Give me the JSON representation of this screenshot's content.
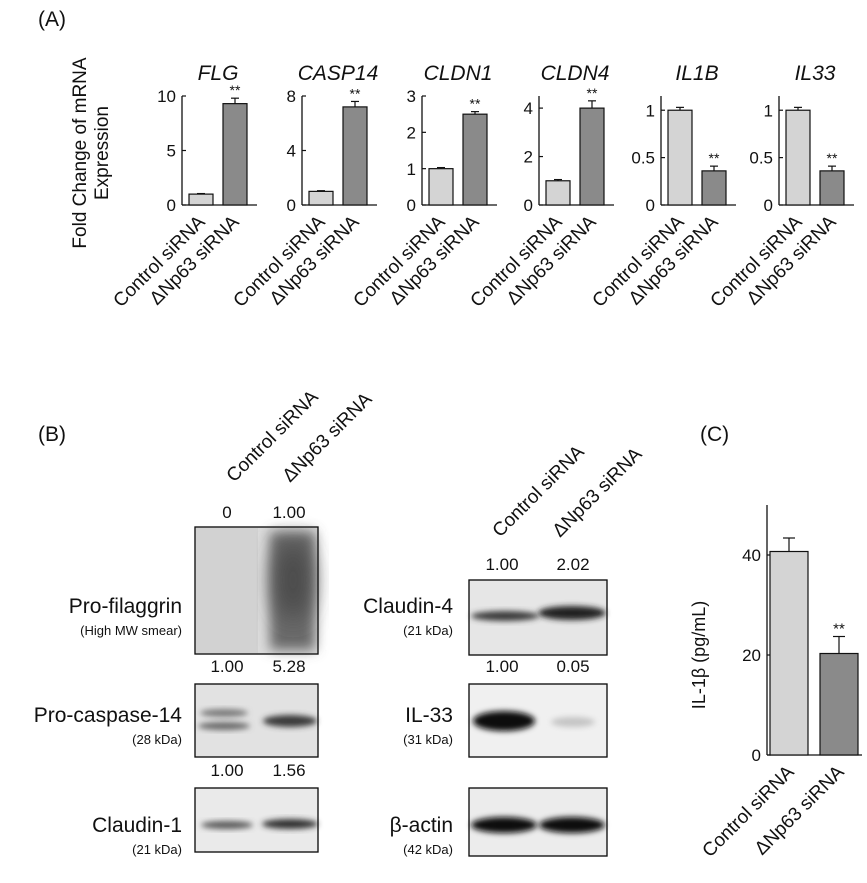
{
  "panel_labels": [
    "(A)",
    "(B)",
    "(C)"
  ],
  "colors": {
    "control": "#d4d4d4",
    "knockdown": "#8a8a8a",
    "axis": "#111111"
  },
  "chart_data": [
    {
      "type": "bar",
      "panel": "(A)",
      "ylabel": [
        "Fold Change of mRNA",
        "Expression"
      ],
      "categories": [
        "Control siRNA",
        "ΔNp63 siRNA"
      ],
      "subplots": [
        {
          "title": "FLG",
          "values": [
            1.0,
            9.3
          ],
          "errors": [
            0.05,
            0.5
          ],
          "ylim": [
            0,
            10
          ],
          "yticks": [
            0,
            5,
            10
          ],
          "significance": [
            "",
            "**"
          ]
        },
        {
          "title": "CASP14",
          "values": [
            1.0,
            7.2
          ],
          "errors": [
            0.05,
            0.4
          ],
          "ylim": [
            0,
            8
          ],
          "yticks": [
            0,
            4,
            8
          ],
          "significance": [
            "",
            "**"
          ]
        },
        {
          "title": "CLDN1",
          "values": [
            1.0,
            2.5
          ],
          "errors": [
            0.03,
            0.07
          ],
          "ylim": [
            0,
            3
          ],
          "yticks": [
            0,
            1,
            2,
            3
          ],
          "significance": [
            "",
            "**"
          ]
        },
        {
          "title": "CLDN4",
          "values": [
            1.0,
            4.0
          ],
          "errors": [
            0.05,
            0.3
          ],
          "ylim": [
            0,
            4.5
          ],
          "yticks": [
            0,
            2,
            4
          ],
          "significance": [
            "",
            "**"
          ]
        },
        {
          "title": "IL1B",
          "values": [
            1.0,
            0.36
          ],
          "errors": [
            0.03,
            0.05
          ],
          "ylim": [
            0,
            1.15
          ],
          "yticks": [
            0,
            0.5,
            1
          ],
          "significance": [
            "",
            "**"
          ]
        },
        {
          "title": "IL33",
          "values": [
            1.0,
            0.36
          ],
          "errors": [
            0.03,
            0.05
          ],
          "ylim": [
            0,
            1.15
          ],
          "yticks": [
            0,
            0.5,
            1
          ],
          "significance": [
            "",
            "**"
          ]
        }
      ]
    },
    {
      "type": "bar",
      "panel": "(C)",
      "ylabel": "IL-1β (pg/mL)",
      "categories": [
        "Control siRNA",
        "ΔNp63 siRNA"
      ],
      "values": [
        40.7,
        20.3
      ],
      "errors": [
        2.7,
        3.4
      ],
      "ylim": [
        0,
        50
      ],
      "yticks": [
        0,
        20,
        40
      ],
      "significance": [
        "",
        "**"
      ]
    }
  ],
  "western_blot": {
    "panel": "(B)",
    "lane_labels": [
      "Control siRNA",
      "ΔNp63 siRNA"
    ],
    "left_column": [
      {
        "protein": "Pro-filaggrin",
        "detail": "(High MW smear)",
        "quant": [
          "0",
          "1.00"
        ]
      },
      {
        "protein": "Pro-caspase-14",
        "detail": "(28 kDa)",
        "quant": [
          "1.00",
          "5.28"
        ]
      },
      {
        "protein": "Claudin-1",
        "detail": "(21 kDa)",
        "quant": [
          "1.00",
          "1.56"
        ]
      }
    ],
    "right_column": [
      {
        "protein": "Claudin-4",
        "detail": "(21 kDa)",
        "quant": [
          "1.00",
          "2.02"
        ]
      },
      {
        "protein": "IL-33",
        "detail": "(31 kDa)",
        "quant": [
          "1.00",
          "0.05"
        ]
      },
      {
        "protein": "β-actin",
        "detail": "(42 kDa)",
        "quant": []
      }
    ]
  }
}
